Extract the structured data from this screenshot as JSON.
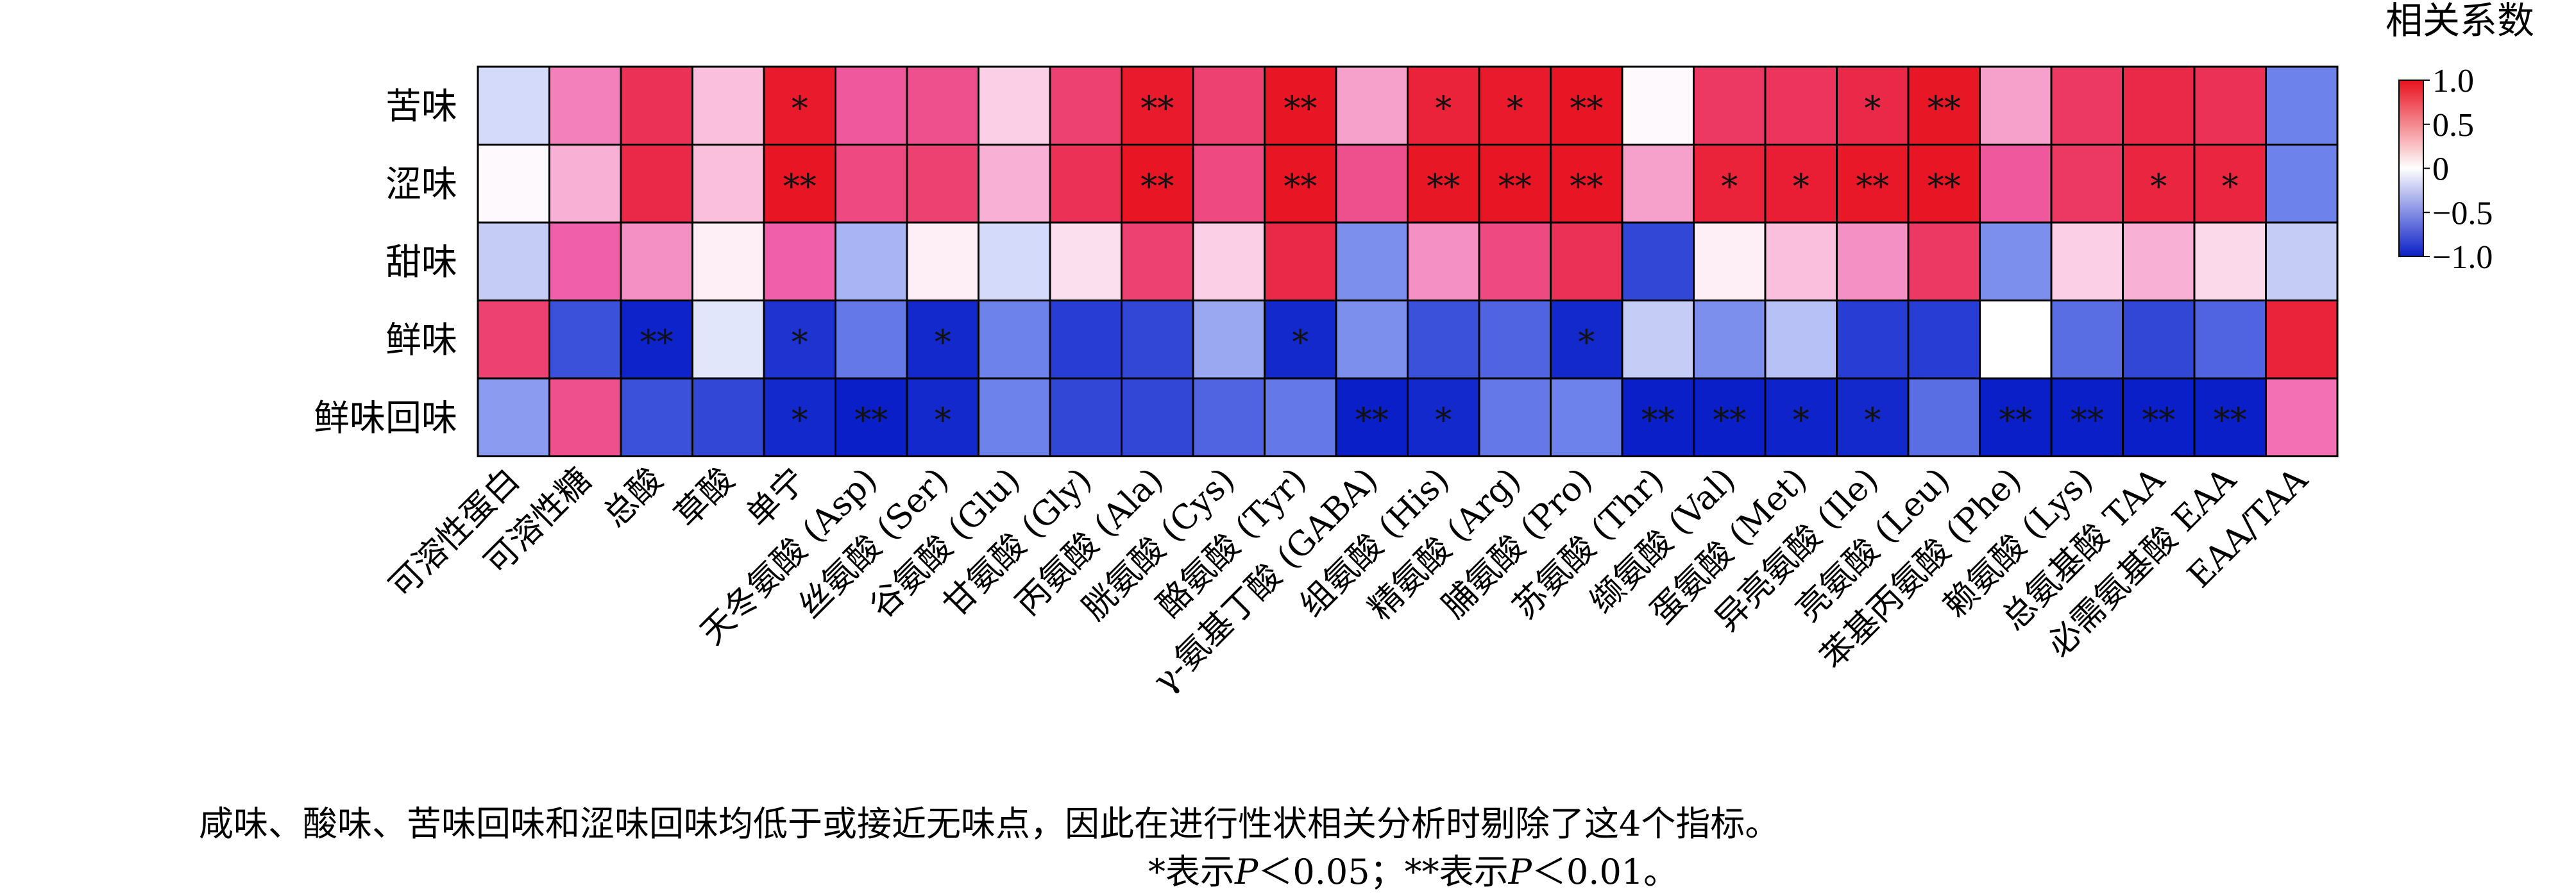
{
  "chart_data": {
    "type": "heatmap",
    "legend_title": "相关系数",
    "rows": [
      "苦味",
      "涩味",
      "甜味",
      "鲜味",
      "鲜味回味"
    ],
    "columns": [
      "可溶性蛋白",
      "可溶性糖",
      "总酸",
      "草酸",
      "单宁",
      "天冬氨酸 (Asp)",
      "丝氨酸 (Ser)",
      "谷氨酸 (Glu)",
      "甘氨酸 (Gly)",
      "丙氨酸 (Ala)",
      "胱氨酸 (Cys)",
      "酪氨酸 (Tyr)",
      "γ-氨基丁酸 (GABA)",
      "组氨酸 (His)",
      "精氨酸 (Arg)",
      "脯氨酸 (Pro)",
      "苏氨酸 (Thr)",
      "缬氨酸 (Val)",
      "蛋氨酸 (Met)",
      "异亮氨酸 (Ile)",
      "亮氨酸 (Leu)",
      "苯基丙氨酸 (Phe)",
      "赖氨酸 (Lys)",
      "总氨基酸 TAA",
      "必需氨基酸 EAA",
      "EAA/TAA"
    ],
    "values": [
      [
        -0.15,
        0.4,
        0.8,
        0.2,
        0.95,
        0.55,
        0.6,
        0.15,
        0.7,
        0.95,
        0.7,
        0.98,
        0.3,
        0.9,
        0.95,
        0.98,
        0.02,
        0.75,
        0.78,
        0.85,
        0.97,
        0.3,
        0.75,
        0.85,
        0.8,
        -0.5
      ],
      [
        0.02,
        0.25,
        0.85,
        0.2,
        0.98,
        0.65,
        0.7,
        0.25,
        0.8,
        0.98,
        0.65,
        0.98,
        0.6,
        0.97,
        0.98,
        0.98,
        0.3,
        0.9,
        0.92,
        0.96,
        0.98,
        0.55,
        0.75,
        0.88,
        0.88,
        -0.5
      ],
      [
        -0.2,
        0.5,
        0.35,
        0.05,
        0.5,
        -0.3,
        0.05,
        -0.15,
        0.1,
        0.7,
        0.15,
        0.85,
        -0.45,
        0.35,
        0.65,
        0.8,
        -0.8,
        0.05,
        0.2,
        0.35,
        0.75,
        -0.45,
        0.15,
        0.25,
        0.12,
        -0.2
      ],
      [
        0.7,
        -0.75,
        -0.98,
        -0.1,
        -0.9,
        -0.55,
        -0.95,
        -0.5,
        -0.85,
        -0.8,
        -0.35,
        -0.95,
        -0.45,
        -0.75,
        -0.65,
        -0.95,
        -0.2,
        -0.45,
        -0.25,
        -0.85,
        -0.85,
        0.0,
        -0.6,
        -0.8,
        -0.65,
        0.9
      ],
      [
        -0.4,
        0.6,
        -0.75,
        -0.8,
        -0.95,
        -1.0,
        -0.95,
        -0.5,
        -0.8,
        -0.8,
        -0.65,
        -0.55,
        -1.0,
        -0.95,
        -0.55,
        -0.5,
        -1.0,
        -1.0,
        -0.98,
        -0.95,
        -0.6,
        -1.0,
        -1.0,
        -1.0,
        -1.0,
        0.45
      ]
    ],
    "significance": [
      [
        "",
        "",
        "",
        "",
        "*",
        "",
        "",
        "",
        "",
        "**",
        "",
        "**",
        "",
        "*",
        "*",
        "**",
        "",
        "",
        "",
        "*",
        "**",
        "",
        "",
        "",
        "",
        ""
      ],
      [
        "",
        "",
        "",
        "",
        "**",
        "",
        "",
        "",
        "",
        "**",
        "",
        "**",
        "",
        "**",
        "**",
        "**",
        "",
        "*",
        "*",
        "**",
        "**",
        "",
        "",
        "*",
        "*",
        ""
      ],
      [
        "",
        "",
        "",
        "",
        "",
        "",
        "",
        "",
        "",
        "",
        "",
        "",
        "",
        "",
        "",
        "",
        "",
        "",
        "",
        "",
        "",
        "",
        "",
        "",
        "",
        ""
      ],
      [
        "",
        "",
        "**",
        "",
        "*",
        "",
        "*",
        "",
        "",
        "",
        "",
        "*",
        "",
        "",
        "",
        "*",
        "",
        "",
        "",
        "",
        "",
        "",
        "",
        "",
        "",
        ""
      ],
      [
        "",
        "",
        "",
        "",
        "*",
        "**",
        "*",
        "",
        "",
        "",
        "",
        "",
        "**",
        "*",
        "",
        "",
        "**",
        "**",
        "*",
        "*",
        "",
        "**",
        "**",
        "**",
        "**",
        ""
      ]
    ],
    "colorbar": {
      "range": [
        -1.0,
        1.0
      ],
      "ticks": [
        1.0,
        0.5,
        0,
        -0.5,
        -1.0
      ],
      "tick_labels": [
        "1.0",
        "0.5",
        "0",
        "−0.5",
        "−1.0"
      ],
      "colors": {
        "negative": "#0a1fc8",
        "zero": "#ffffff",
        "positive": "#e8121e"
      }
    }
  },
  "footnote": {
    "line1": "咸味、酸味、苦味回味和涩味回味均低于或接近无味点，因此在进行性状相关分析时剔除了这4个指标。",
    "line2_sig1": "*表示",
    "line2_p1": "P",
    "line2_lt1": "＜0.05；**表示",
    "line2_p2": "P",
    "line2_lt2": "＜0.01。"
  }
}
